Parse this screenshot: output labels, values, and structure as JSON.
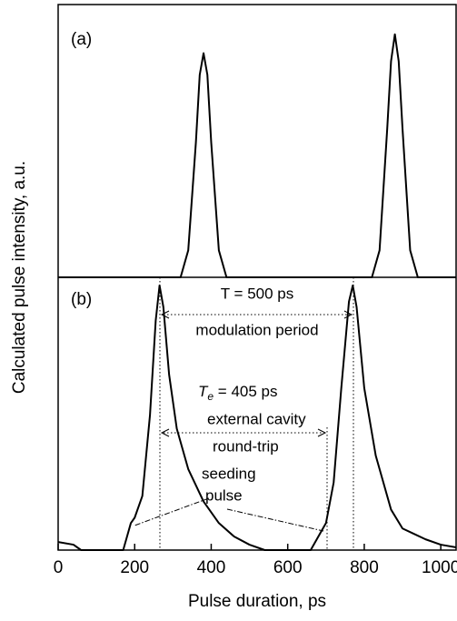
{
  "chart_data": [
    {
      "type": "line",
      "panel_label": "(a)",
      "color": "#000000",
      "ylabel": "Calculated pulse intensity, a.u.",
      "x": [
        0,
        320,
        340,
        360,
        370,
        380,
        390,
        400,
        420,
        440,
        820,
        840,
        860,
        870,
        880,
        890,
        900,
        920,
        940,
        1040
      ],
      "values": [
        0,
        0,
        0.1,
        0.5,
        0.75,
        0.83,
        0.75,
        0.5,
        0.1,
        0,
        0,
        0.1,
        0.55,
        0.8,
        0.9,
        0.8,
        0.55,
        0.1,
        0,
        0
      ],
      "xlim": [
        0,
        1040
      ],
      "ylim": [
        0,
        1
      ]
    },
    {
      "type": "line",
      "panel_label": "(b)",
      "color": "#000000",
      "xlabel": "Pulse duration, ps",
      "x": [
        0,
        40,
        60,
        170,
        190,
        200,
        220,
        240,
        255,
        265,
        275,
        290,
        310,
        340,
        380,
        420,
        460,
        500,
        540,
        660,
        680,
        700,
        720,
        740,
        760,
        770,
        780,
        800,
        830,
        870,
        900,
        930,
        960,
        1000,
        1040
      ],
      "values": [
        0.03,
        0.02,
        0,
        0,
        0.1,
        0.12,
        0.2,
        0.5,
        0.85,
        0.98,
        0.9,
        0.65,
        0.45,
        0.3,
        0.18,
        0.1,
        0.05,
        0.02,
        0,
        0,
        0.05,
        0.1,
        0.25,
        0.6,
        0.92,
        0.98,
        0.9,
        0.6,
        0.35,
        0.15,
        0.08,
        0.06,
        0.04,
        0.02,
        0.01
      ],
      "xlim": [
        0,
        1040
      ],
      "ylim": [
        0,
        1
      ],
      "xticks": [
        0,
        200,
        400,
        600,
        800,
        1000
      ],
      "annotations": {
        "period_value": "T = 500 ps",
        "period_label": "modulation period",
        "roundtrip_symbol": "T",
        "roundtrip_subscript": "e",
        "roundtrip_value": " = 405 ps",
        "roundtrip_label1": "external cavity",
        "roundtrip_label2": "round-trip",
        "seed_label1": "seeding",
        "seed_label2": "pulse"
      }
    }
  ]
}
